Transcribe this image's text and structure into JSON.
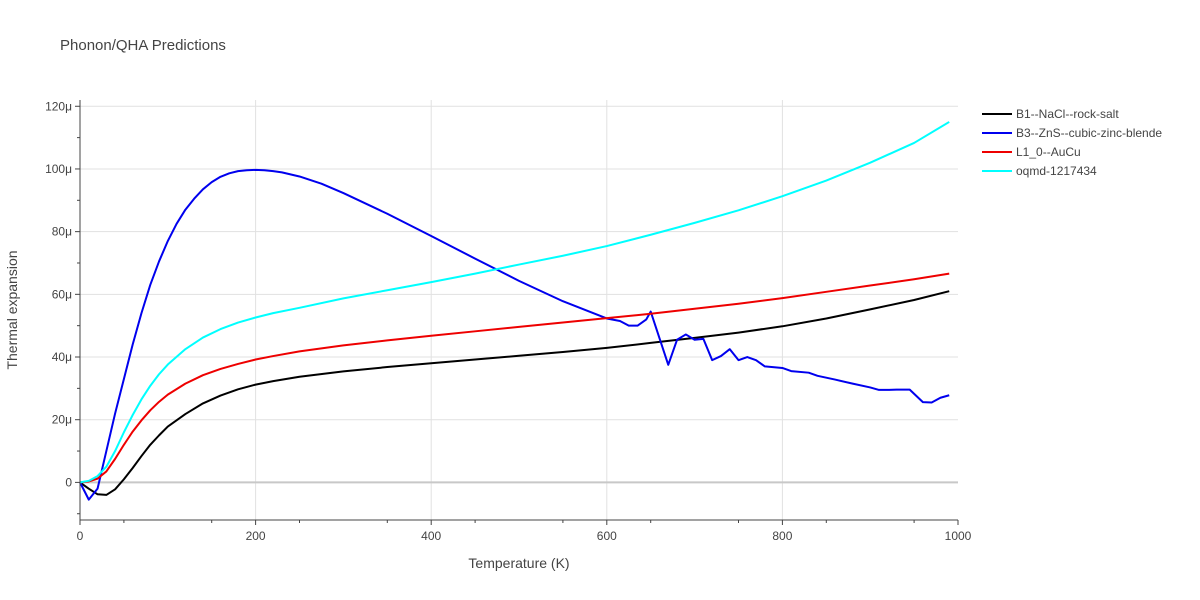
{
  "chart_data": {
    "type": "line",
    "title": "Phonon/QHA Predictions",
    "xlabel": "Temperature (K)",
    "ylabel": "Thermal expansion",
    "xlim": [
      0,
      1000
    ],
    "ylim": [
      -12,
      122
    ],
    "x_ticks": [
      0,
      200,
      400,
      600,
      800,
      1000
    ],
    "x_tick_labels": [
      "0",
      "200",
      "400",
      "600",
      "800",
      "1000"
    ],
    "y_ticks": [
      0,
      20,
      40,
      60,
      80,
      100,
      120
    ],
    "y_tick_labels": [
      "0",
      "20μ",
      "40μ",
      "60μ",
      "80μ",
      "100μ",
      "120μ"
    ],
    "y_unit": "μ",
    "grid": true,
    "legend_position": "top-right",
    "series": [
      {
        "name": "B1--NaCl--rock-salt",
        "color": "#000000",
        "x": [
          0,
          10,
          20,
          30,
          40,
          50,
          60,
          70,
          80,
          90,
          100,
          120,
          140,
          160,
          180,
          200,
          220,
          250,
          300,
          350,
          400,
          450,
          500,
          550,
          600,
          650,
          700,
          750,
          800,
          850,
          900,
          950,
          990
        ],
        "y": [
          0,
          -2,
          -3.8,
          -4,
          -2.2,
          1,
          4.6,
          8.4,
          12,
          15,
          17.8,
          21.8,
          25.2,
          27.7,
          29.7,
          31.2,
          32.3,
          33.7,
          35.4,
          36.8,
          38,
          39.2,
          40.4,
          41.6,
          42.9,
          44.5,
          46.1,
          47.8,
          49.8,
          52.3,
          55.2,
          58.2,
          61
        ]
      },
      {
        "name": "B3--ZnS--cubic-zinc-blende",
        "color": "#0000ee",
        "x": [
          0,
          10,
          20,
          30,
          40,
          50,
          60,
          70,
          80,
          90,
          100,
          110,
          120,
          130,
          140,
          150,
          160,
          170,
          180,
          190,
          200,
          210,
          220,
          230,
          250,
          275,
          300,
          350,
          400,
          450,
          500,
          550,
          600,
          615,
          625,
          635,
          645,
          650,
          660,
          670,
          680,
          690,
          700,
          710,
          720,
          730,
          740,
          750,
          760,
          770,
          780,
          800,
          810,
          830,
          840,
          860,
          880,
          900,
          910,
          920,
          930,
          945,
          960,
          970,
          980,
          990
        ],
        "y": [
          0,
          -5.5,
          -2,
          10,
          22,
          33,
          44,
          54,
          63,
          70.5,
          77,
          82.5,
          87,
          90.5,
          93.5,
          95.8,
          97.5,
          98.6,
          99.3,
          99.6,
          99.7,
          99.6,
          99.3,
          98.9,
          97.6,
          95.3,
          92.3,
          85.7,
          78.6,
          71.4,
          64.3,
          57.8,
          52.3,
          51.5,
          50,
          50,
          52,
          54.5,
          46,
          37.5,
          45.5,
          47.2,
          45.5,
          45.8,
          39,
          40.3,
          42.5,
          39,
          40,
          39,
          37,
          36.5,
          35.5,
          35,
          34,
          32.8,
          31.5,
          30.3,
          29.5,
          29.5,
          29.6,
          29.6,
          25.6,
          25.5,
          27,
          27.8
        ]
      },
      {
        "name": "L1_0--AuCu",
        "color": "#ee0000",
        "x": [
          0,
          10,
          20,
          30,
          40,
          50,
          60,
          70,
          80,
          90,
          100,
          120,
          140,
          160,
          180,
          200,
          220,
          250,
          300,
          350,
          400,
          450,
          500,
          550,
          600,
          650,
          700,
          750,
          800,
          850,
          900,
          950,
          990
        ],
        "y": [
          0,
          0.3,
          1.2,
          3.5,
          7.5,
          12,
          16.2,
          19.8,
          23,
          25.7,
          28,
          31.5,
          34.2,
          36.2,
          37.8,
          39.2,
          40.3,
          41.8,
          43.7,
          45.3,
          46.8,
          48.2,
          49.6,
          51,
          52.4,
          53.8,
          55.4,
          57,
          58.8,
          60.8,
          62.8,
          64.8,
          66.6
        ]
      },
      {
        "name": "oqmd-1217434",
        "color": "#00ffff",
        "x": [
          0,
          10,
          20,
          30,
          40,
          50,
          60,
          70,
          80,
          90,
          100,
          120,
          140,
          160,
          180,
          200,
          220,
          250,
          300,
          350,
          400,
          450,
          500,
          550,
          600,
          650,
          700,
          750,
          800,
          850,
          900,
          950,
          990
        ],
        "y": [
          0,
          0.5,
          2,
          5,
          10,
          16,
          21.5,
          26.5,
          30.8,
          34.5,
          37.6,
          42.5,
          46.2,
          48.9,
          51,
          52.6,
          54,
          55.7,
          58.7,
          61.3,
          63.9,
          66.6,
          69.5,
          72.3,
          75.4,
          79,
          82.8,
          86.8,
          91.3,
          96.3,
          102,
          108.3,
          115
        ]
      }
    ]
  }
}
